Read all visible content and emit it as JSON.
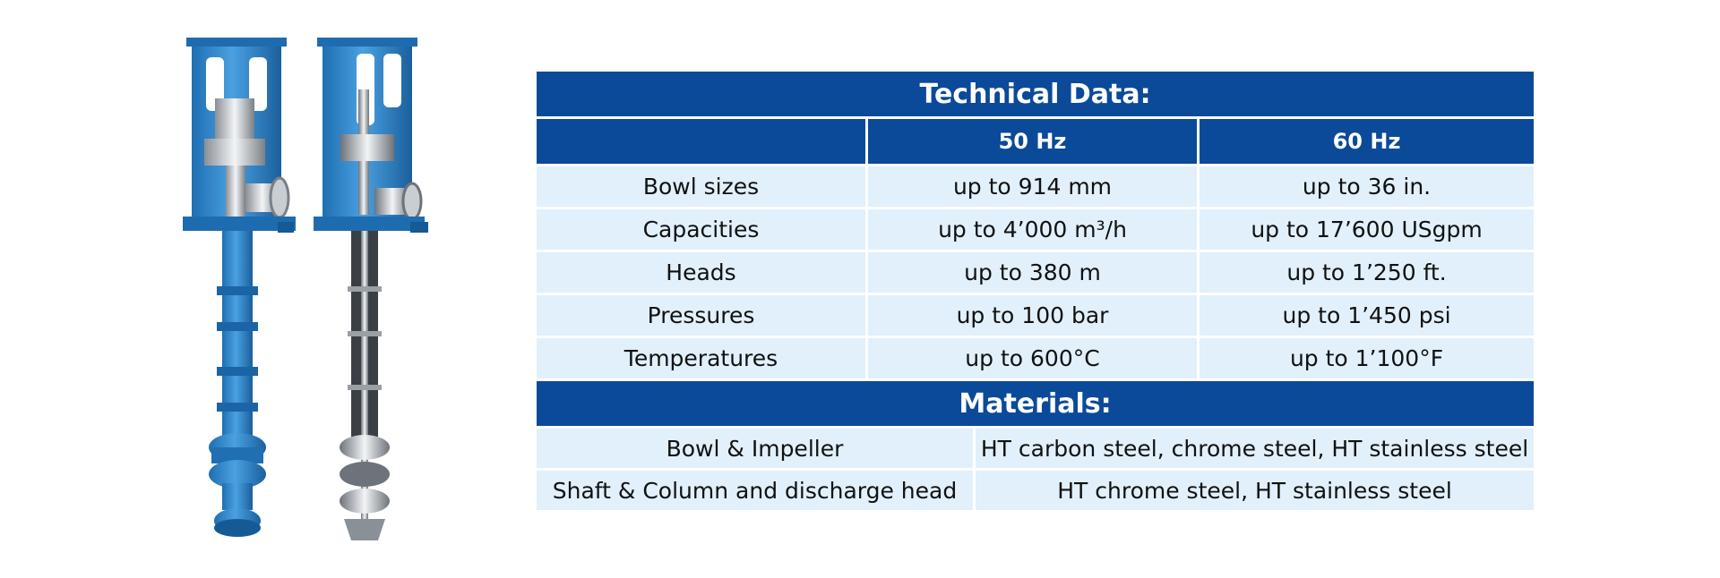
{
  "table": {
    "title": "Technical Data:",
    "header": {
      "col_blank": "",
      "col_50hz": "50 Hz",
      "col_60hz": "60 Hz"
    },
    "rows": [
      {
        "label": "Bowl sizes",
        "hz50": "up to 914 mm",
        "hz60": "up to 36 in."
      },
      {
        "label": "Capacities",
        "hz50": "up to 4’000 m³/h",
        "hz60": "up to 17’600 USgpm"
      },
      {
        "label": "Heads",
        "hz50": "up to 380 m",
        "hz60": "up to 1’250 ft."
      },
      {
        "label": "Pressures",
        "hz50": "up to 100 bar",
        "hz60": "up to 1’450 psi"
      },
      {
        "label": "Temperatures",
        "hz50": "up to 600°C",
        "hz60": "up to 1’100°F"
      }
    ],
    "materials_title": "Materials:",
    "materials": [
      {
        "label": "Bowl & Impeller",
        "value": "HT carbon steel, chrome steel, HT stainless steel"
      },
      {
        "label": "Shaft & Column and discharge head",
        "value": "HT chrome steel, HT stainless steel"
      }
    ]
  },
  "colors": {
    "header_blue": "#0b4a99",
    "cell_light_blue": "#e1f0fa",
    "pump_blue": "#2f84c8"
  },
  "images": [
    {
      "name": "vertical-pump-exterior-image"
    },
    {
      "name": "vertical-pump-cutaway-image"
    }
  ]
}
